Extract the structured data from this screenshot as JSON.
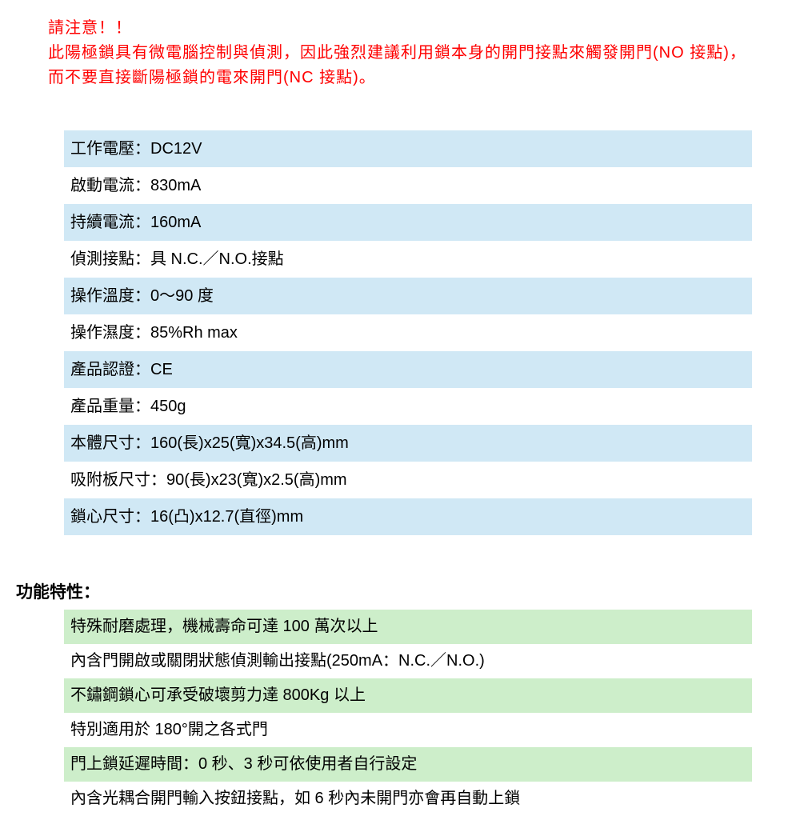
{
  "warning": {
    "line1": "請注意！！",
    "line2": "此陽極鎖具有微電腦控制與偵測，因此強烈建議利用鎖本身的開門接點來觸發開門(NO 接點)，而不要直接斷陽極鎖的電來開門(NC 接點)。"
  },
  "specs": {
    "rows": [
      "工作電壓：DC12V",
      "啟動電流：830mA",
      "持續電流：160mA",
      "偵測接點：具 N.C.／N.O.接點",
      "操作溫度：0～90 度",
      "操作濕度：85%Rh max",
      "產品認證：CE",
      "產品重量：450g",
      "本體尺寸：160(長)x25(寬)x34.5(高)mm",
      "吸附板尺寸：90(長)x23(寬)x2.5(高)mm",
      "鎖心尺寸：16(凸)x12.7(直徑)mm"
    ],
    "row_colors": [
      "blue",
      "white",
      "blue",
      "white",
      "blue",
      "white",
      "blue",
      "white",
      "blue",
      "white",
      "blue"
    ],
    "bg_blue": "#d0e8f5",
    "bg_white": "#ffffff"
  },
  "features": {
    "heading": "功能特性：",
    "rows": [
      "特殊耐磨處理，機械壽命可達 100 萬次以上",
      "內含門開啟或關閉狀態偵測輸出接點(250mA：N.C.／N.O.)",
      "不鏽鋼鎖心可承受破壞剪力達 800Kg 以上",
      "特別適用於 180°開之各式門",
      "門上鎖延遲時間：0 秒、3 秒可依使用者自行設定",
      "內含光耦合開門輸入按鈕接點，如 6 秒內未開門亦會再自動上鎖"
    ],
    "row_colors": [
      "green",
      "white",
      "green",
      "white",
      "green",
      "white"
    ],
    "bg_green": "#cdeeca",
    "bg_white": "#ffffff"
  },
  "colors": {
    "warning_text": "#ff0000",
    "body_text": "#000000",
    "background": "#ffffff"
  },
  "typography": {
    "body_fontsize": 20,
    "heading_fontsize": 21,
    "heading_weight": "bold"
  }
}
